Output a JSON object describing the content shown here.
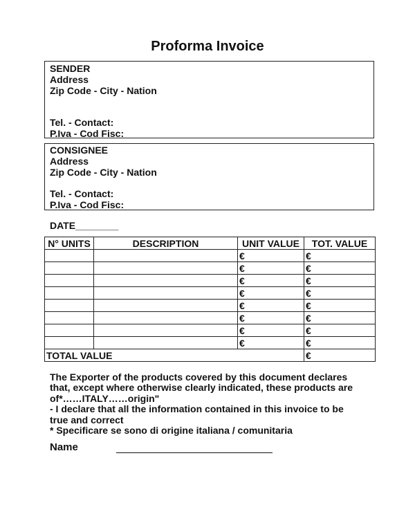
{
  "title": "Proforma Invoice",
  "sender": {
    "lines": [
      "SENDER",
      "Address",
      "Zip Code - City - Nation",
      "Tel. - Contact:",
      "P.Iva - Cod Fisc:"
    ]
  },
  "consignee": {
    "lines": [
      "CONSIGNEE",
      "Address",
      "Zip Code - City - Nation",
      "Tel. - Contact:",
      "P.Iva - Cod Fisc:"
    ]
  },
  "date_label": "DATE________",
  "table": {
    "headers": [
      "N° UNITS",
      "DESCRIPTION",
      "UNIT VALUE",
      "TOT. VALUE"
    ],
    "currency_symbol": "€",
    "row_count": 8,
    "total_label": "TOTAL  VALUE"
  },
  "declaration": {
    "lines": [
      "The Exporter of the products covered by this document declares",
      "that, except where otherwise clearly indicated, these products are",
      "of*……ITALY……origin\"",
      "- I declare that all the information contained in this invoice to be",
      "true and correct",
      "* Specificare se sono di origine italiana / comunitaria"
    ]
  },
  "name_label": "Name"
}
